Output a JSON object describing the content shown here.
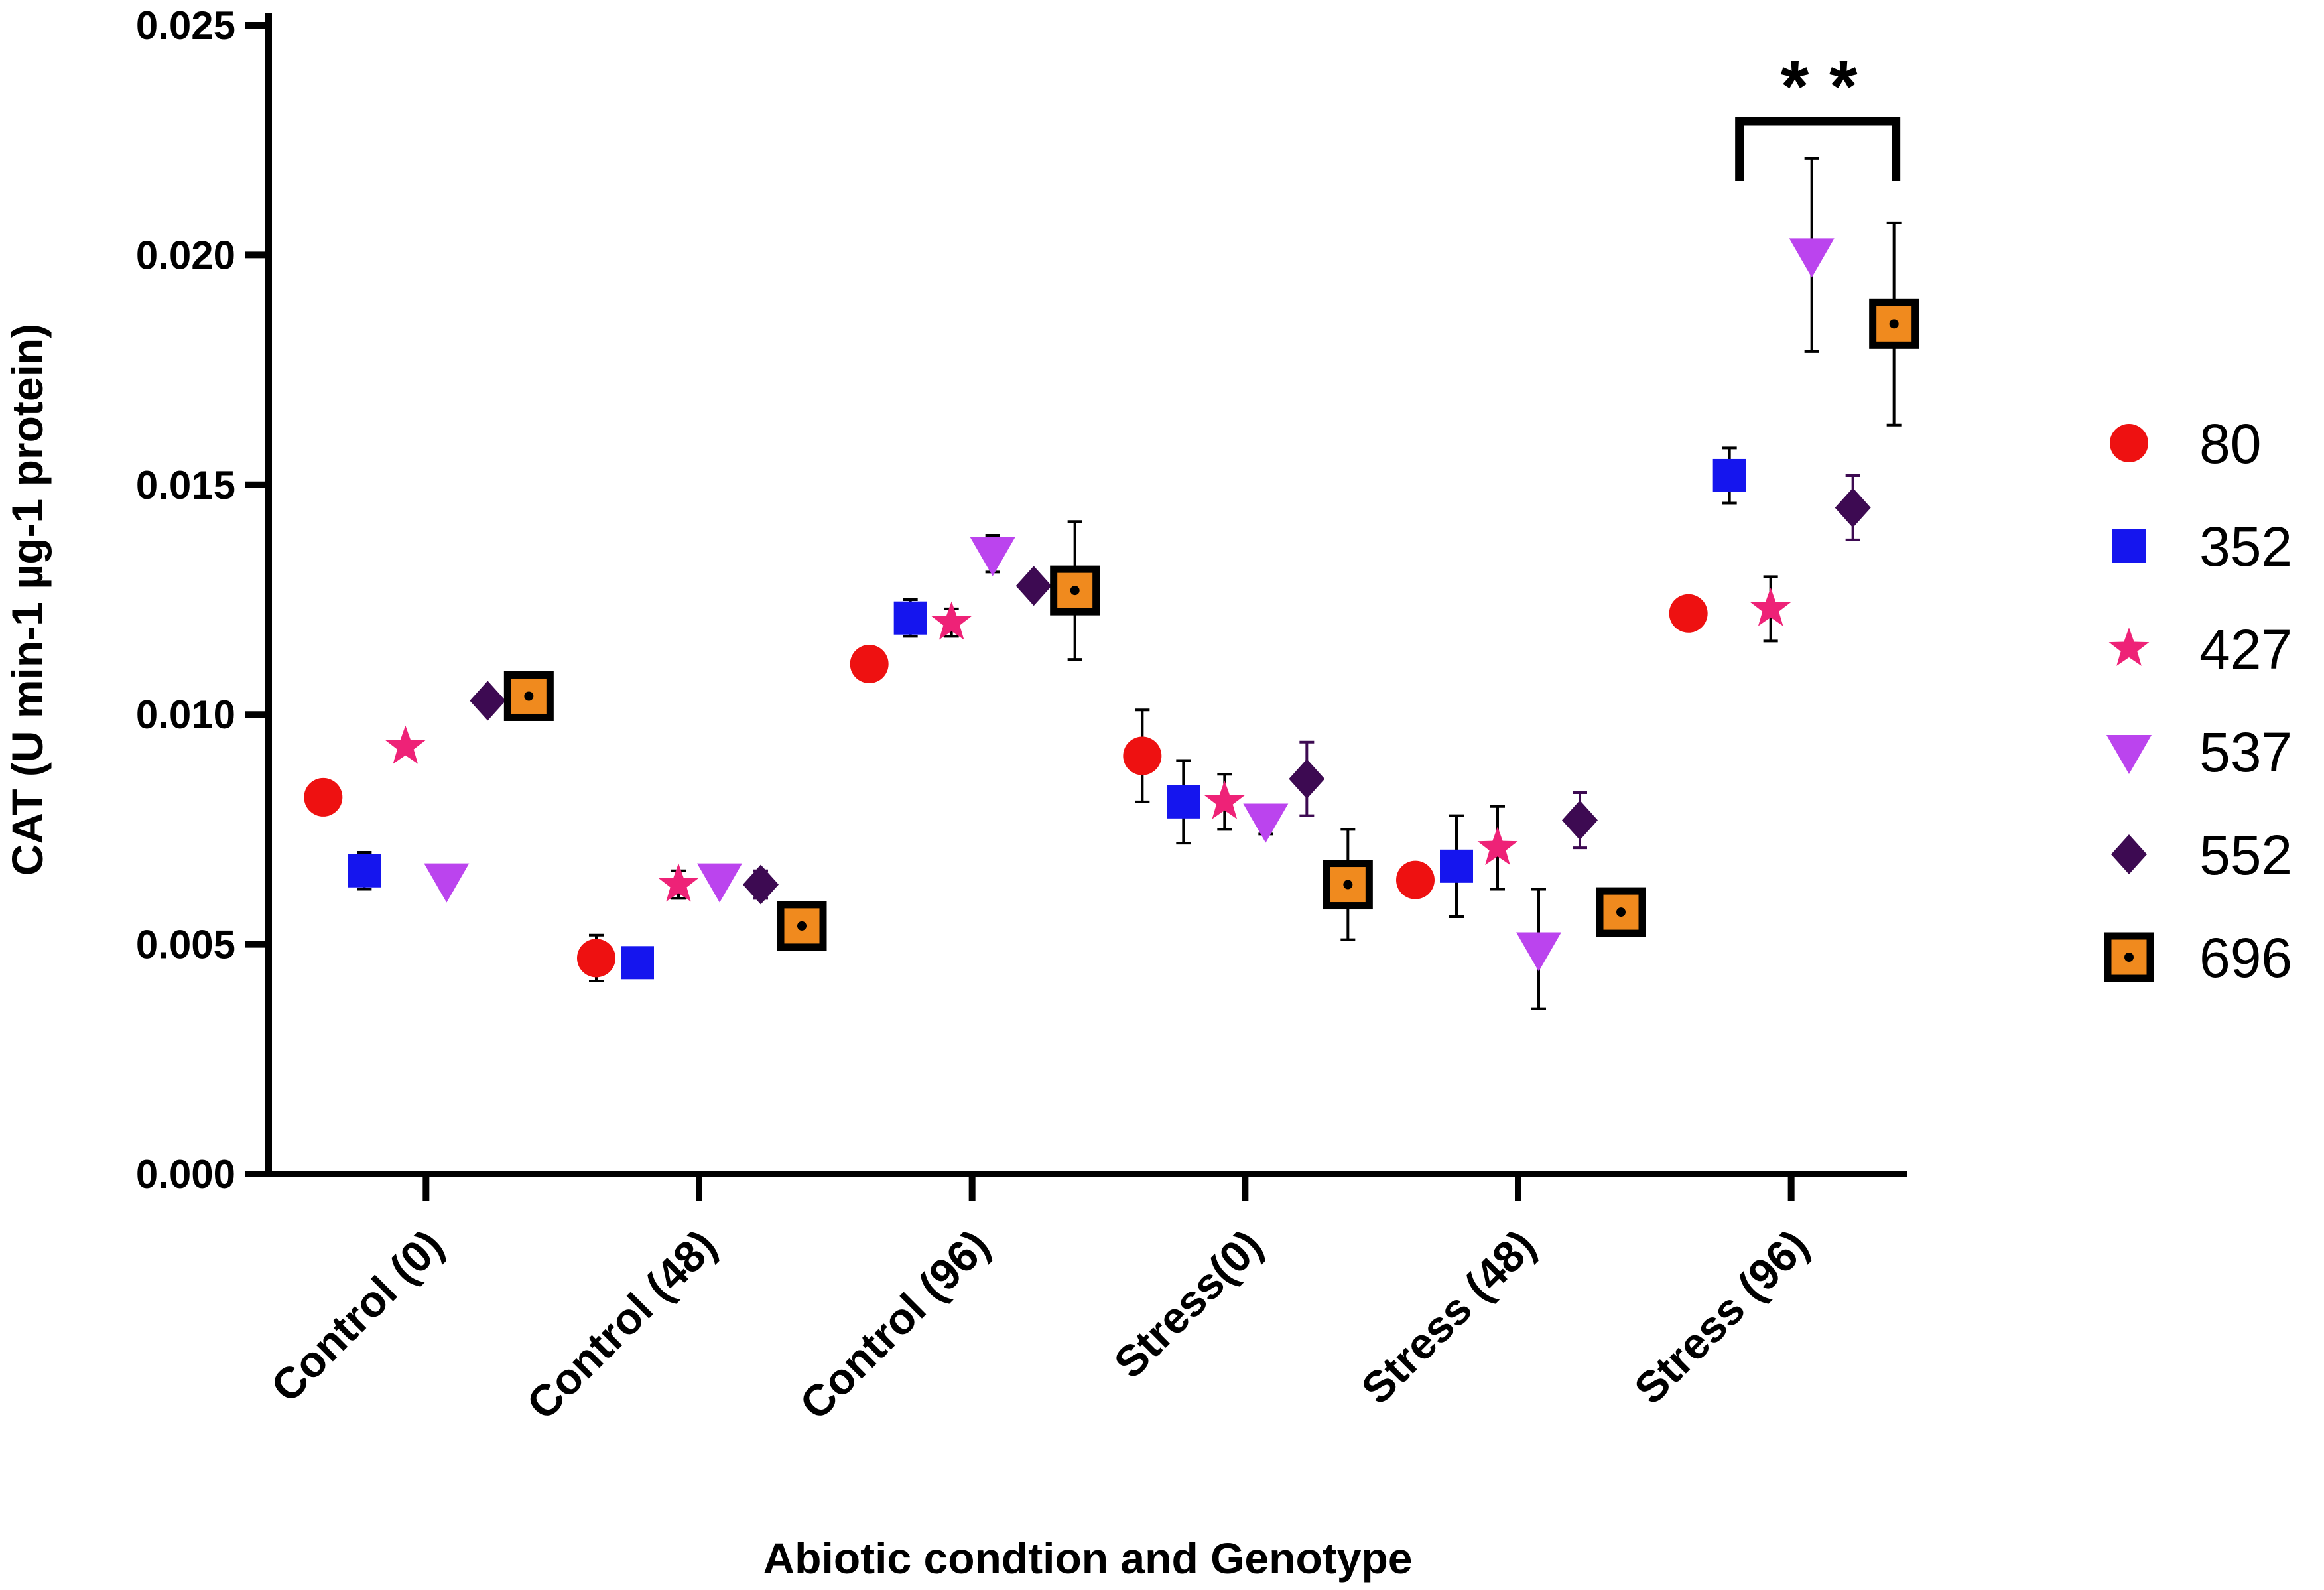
{
  "chart_data": {
    "type": "scatter",
    "xlabel": "Abiotic condtion and Genotype",
    "ylabel": "CAT (U min-1 µg-1 protein)",
    "ylim": [
      0,
      0.025
    ],
    "yticks": [
      "0.000",
      "0.005",
      "0.010",
      "0.015",
      "0.020",
      "0.025"
    ],
    "categories": [
      "Control (0)",
      "Control (48)",
      "Control (96)",
      "Stress(0)",
      "Stress (48)",
      "Stress (96)"
    ],
    "series": [
      {
        "name": "80",
        "marker": "circle",
        "color": "#ee1111",
        "values": [
          0.0082,
          0.0047,
          0.0111,
          0.0091,
          0.0064,
          0.0122
        ],
        "errors": [
          0,
          0.0005,
          0,
          0.001,
          0,
          0
        ]
      },
      {
        "name": "352",
        "marker": "square",
        "color": "#1515ee",
        "values": [
          0.0066,
          0.0046,
          0.0121,
          0.0081,
          0.0067,
          0.0152
        ],
        "errors": [
          0.0004,
          0,
          0.0004,
          0.0009,
          0.0011,
          0.0006
        ]
      },
      {
        "name": "427",
        "marker": "star",
        "color": "#ee2277",
        "values": [
          0.0093,
          0.0063,
          0.012,
          0.0081,
          0.0071,
          0.0123
        ],
        "errors": [
          0,
          0.0003,
          0.0003,
          0.0006,
          0.0009,
          0.0007
        ]
      },
      {
        "name": "537",
        "marker": "triangle-down",
        "color": "#bb44ee",
        "values": [
          0.0064,
          0.0064,
          0.0135,
          0.0077,
          0.0049,
          0.02
        ],
        "errors": [
          0.0002,
          0,
          0.0004,
          0.0003,
          0.0013,
          0.0021
        ]
      },
      {
        "name": "552",
        "marker": "diamond",
        "color": "#3d0a52",
        "values": [
          0.0103,
          0.0063,
          0.0128,
          0.0086,
          0.0077,
          0.0145
        ],
        "errors": [
          0,
          0.0003,
          0,
          0.0008,
          0.0006,
          0.0007
        ]
      },
      {
        "name": "696",
        "marker": "square-outlined",
        "color": "#f08a1e",
        "values": [
          0.0104,
          0.0054,
          0.0127,
          0.0063,
          0.0057,
          0.0185
        ],
        "errors": [
          0,
          0,
          0.0015,
          0.0012,
          0,
          0.0022
        ]
      }
    ],
    "annotations": [
      {
        "text": "* *",
        "category": "Stress (96)",
        "between_series": [
          "352",
          "696"
        ]
      }
    ],
    "legend_position": "right"
  }
}
